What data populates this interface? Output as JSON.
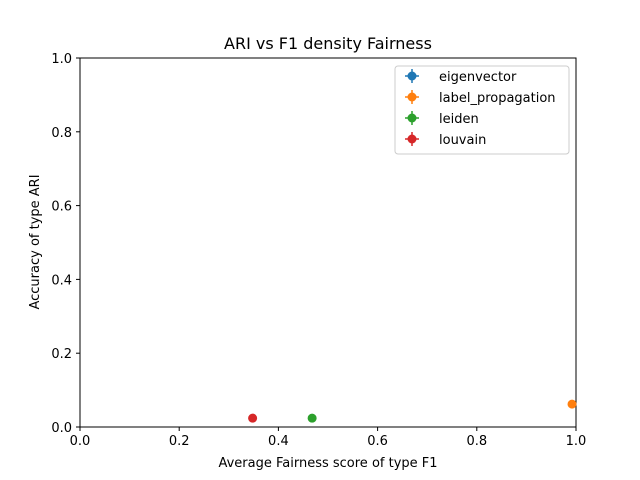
{
  "chart_data": {
    "type": "scatter",
    "title": "ARI vs F1 density Fairness",
    "xlabel": "Average Fairness score of type F1",
    "ylabel": "Accuracy of type ARI",
    "xlim": [
      0,
      1
    ],
    "ylim": [
      0,
      1
    ],
    "xticks": [
      "0.0",
      "0.2",
      "0.4",
      "0.6",
      "0.8",
      "1.0"
    ],
    "yticks": [
      "0.0",
      "0.2",
      "0.4",
      "0.6",
      "0.8",
      "1.0"
    ],
    "grid": false,
    "legend_position": "top-right",
    "error_bars": true,
    "series": [
      {
        "name": "eigenvector",
        "color": "#1f77b4",
        "points": []
      },
      {
        "name": "label_propagation",
        "color": "#ff7f0e",
        "points": [
          {
            "x": 0.992,
            "y": 0.062
          }
        ]
      },
      {
        "name": "leiden",
        "color": "#2ca02c",
        "points": [
          {
            "x": 0.468,
            "y": 0.024
          }
        ]
      },
      {
        "name": "louvain",
        "color": "#d62728",
        "points": [
          {
            "x": 0.348,
            "y": 0.024
          }
        ]
      }
    ]
  }
}
